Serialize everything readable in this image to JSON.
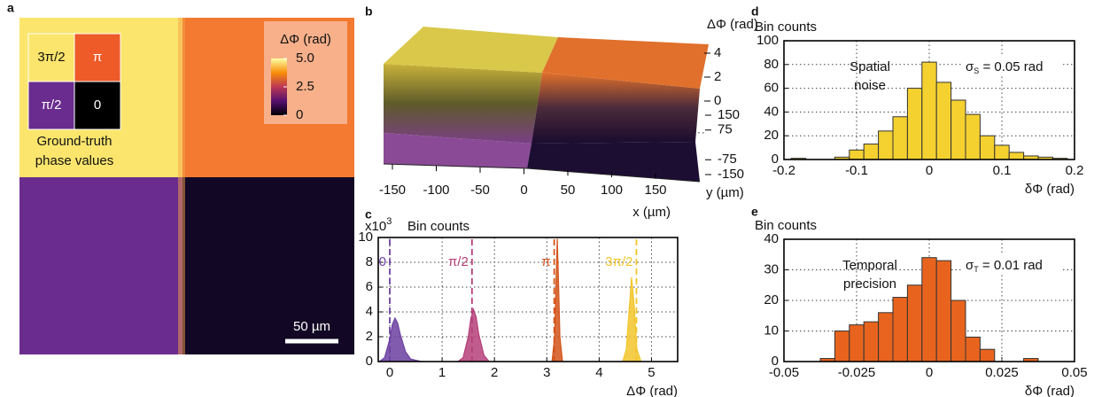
{
  "chart_data": [
    {
      "type": "image",
      "panel": "a",
      "quadrant_labels": [
        "3π/2",
        "π",
        "π/2",
        "0"
      ],
      "caption": [
        "Ground-truth",
        "phase values"
      ],
      "colorbar": {
        "label": "ΔΦ (rad)",
        "lim": [
          0,
          5
        ],
        "ticks": [
          {
            "value": 5,
            "label": "5.0"
          },
          {
            "value": 2.5,
            "label": "2.5"
          },
          0
        ]
      },
      "scale_bar": "50 µm"
    },
    {
      "type": "surface3d",
      "panel": "b",
      "zlabel": "ΔΦ (rad)",
      "zlim": [
        0,
        5
      ],
      "zticks": [
        0,
        2,
        4
      ],
      "xlabel": "x (µm)",
      "xlim": [
        -150,
        150
      ],
      "xticks": [
        -150,
        -100,
        -50,
        0,
        50,
        100,
        150
      ],
      "ylabel": "y (µm)",
      "ylim": [
        -150,
        150
      ],
      "yticks": [
        150,
        75,
        -75,
        -150
      ]
    },
    {
      "type": "area",
      "panel": "c",
      "ylabel": "Bin counts",
      "y_multiplier": {
        "base": "x10",
        "exponent": "3"
      },
      "xlabel": "ΔΦ (rad)",
      "xlim": [
        -0.22,
        5.5
      ],
      "xticks": [
        0,
        1,
        2,
        3,
        4,
        5
      ],
      "ylim": [
        0,
        10
      ],
      "yticks": [
        0,
        2,
        4,
        6,
        8,
        10
      ],
      "grid": true,
      "series": [
        {
          "name": "0",
          "color": "#6b3fa0",
          "marker": 0,
          "x": [
            -0.2,
            -0.1,
            0,
            0.05,
            0.1,
            0.15,
            0.2,
            0.3,
            0.4,
            0.6
          ],
          "values": [
            0,
            0.3,
            1.8,
            3.0,
            3.5,
            3.1,
            2.2,
            0.8,
            0.2,
            0
          ]
        },
        {
          "name": "π/2",
          "color": "#b5407a",
          "marker": 1.5708,
          "x": [
            1.3,
            1.4,
            1.5,
            1.55,
            1.6,
            1.65,
            1.7,
            1.8,
            1.9
          ],
          "values": [
            0,
            0.3,
            2.0,
            3.5,
            4.2,
            3.6,
            2.2,
            0.5,
            0
          ]
        },
        {
          "name": "π",
          "color": "#d4541a",
          "marker": 3.1416,
          "x": [
            3.1,
            3.15,
            3.18,
            3.2,
            3.22,
            3.25,
            3.3
          ],
          "values": [
            0,
            2,
            7,
            9.9,
            7,
            2,
            0
          ]
        },
        {
          "name": "3π/2",
          "color": "#f2c62a",
          "marker": 4.7124,
          "x": [
            4.45,
            4.52,
            4.57,
            4.62,
            4.67,
            4.72,
            4.8
          ],
          "values": [
            0,
            1,
            4,
            6.8,
            4.5,
            1,
            0
          ]
        }
      ]
    },
    {
      "type": "histogram",
      "panel": "d",
      "color": "#f5d130",
      "ylabel": "Bin counts",
      "xlabel": "δΦ (rad)",
      "xlim": [
        -0.2,
        0.2
      ],
      "xticks": [
        -0.2,
        -0.1,
        0,
        0.1,
        0.2
      ],
      "ylim": [
        0,
        100
      ],
      "yticks": [
        0,
        20,
        40,
        60,
        80,
        100
      ],
      "grid": true,
      "bins": [
        -0.19,
        -0.17,
        -0.15,
        -0.13,
        -0.11,
        -0.09,
        -0.07,
        -0.05,
        -0.03,
        -0.01,
        0.01,
        0.03,
        0.05,
        0.07,
        0.09,
        0.11,
        0.13,
        0.15,
        0.17,
        0.19
      ],
      "counts": [
        1,
        0,
        0,
        2,
        8,
        13,
        24,
        36,
        60,
        82,
        65,
        50,
        38,
        20,
        12,
        6,
        3,
        2,
        1
      ],
      "annotation": [
        "Spatial",
        "noise"
      ],
      "sigma": {
        "symbol": "σ",
        "subscript": "S",
        "text": " = 0.05 rad"
      }
    },
    {
      "type": "histogram",
      "panel": "e",
      "color": "#e8641e",
      "ylabel": "Bin counts",
      "xlabel": "δΦ (rad)",
      "xlim": [
        -0.05,
        0.05
      ],
      "xticks": [
        -0.05,
        -0.025,
        0,
        0.025,
        0.05
      ],
      "ylim": [
        0,
        40
      ],
      "yticks": [
        0,
        10,
        20,
        30,
        40
      ],
      "grid": true,
      "bins": [
        -0.0375,
        -0.0325,
        -0.0275,
        -0.0225,
        -0.0175,
        -0.0125,
        -0.0075,
        -0.0025,
        0.0025,
        0.0075,
        0.0125,
        0.0175,
        0.0225,
        0.0275,
        0.0325,
        0.0375
      ],
      "counts": [
        1,
        10,
        12,
        13,
        16,
        21,
        25,
        34,
        33,
        20,
        8,
        4,
        0,
        0,
        1
      ],
      "annotation": [
        "Temporal",
        "precision"
      ],
      "sigma": {
        "symbol": "σ",
        "subscript": "T",
        "text": " = 0.01 rad"
      }
    }
  ]
}
